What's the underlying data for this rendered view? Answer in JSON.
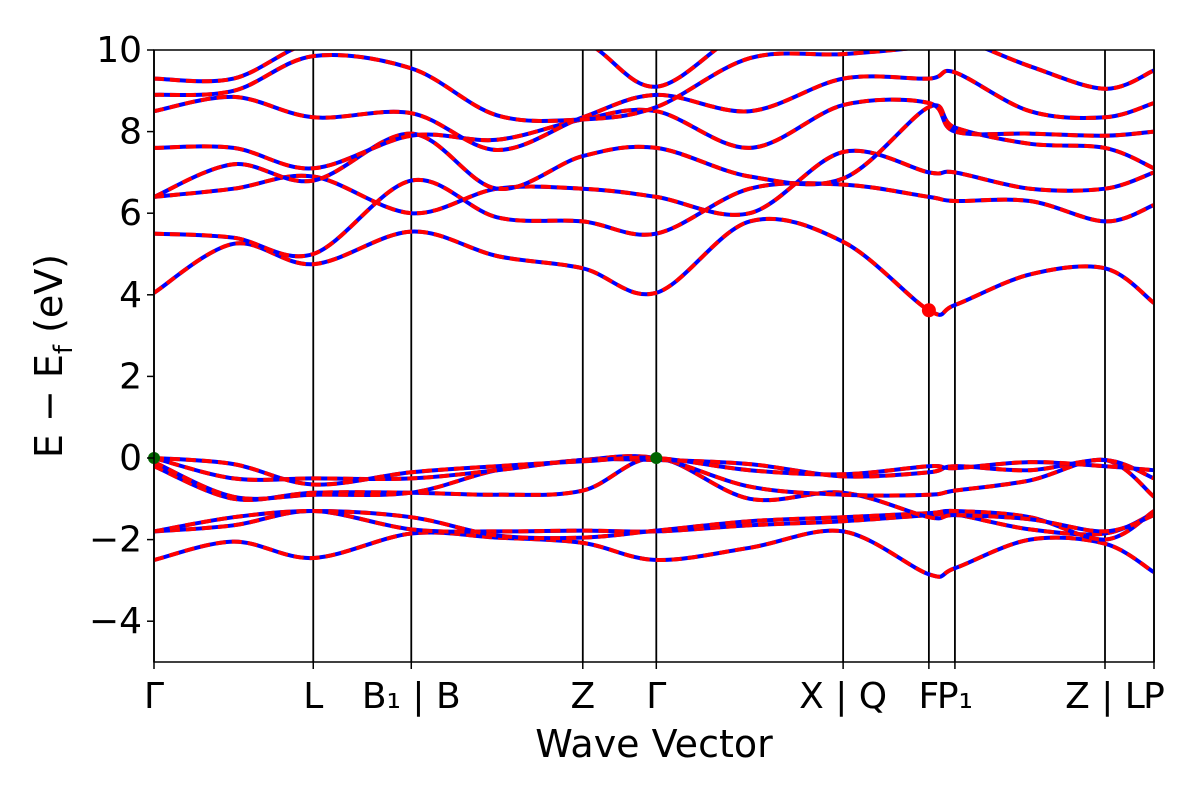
{
  "chart_data": {
    "type": "line",
    "title": "",
    "xlabel": "Wave Vector",
    "ylabel": "E − E_f (eV)",
    "ylabel_parts": {
      "main": "E − E",
      "sub": "f",
      "tail": " (eV)"
    },
    "ylim": [
      -5,
      10
    ],
    "yticks": [
      -4,
      -2,
      0,
      2,
      4,
      6,
      8,
      10
    ],
    "ytick_labels": [
      "−4",
      "−2",
      "0",
      "2",
      "4",
      "6",
      "8",
      "10"
    ],
    "xlim": [
      0,
      6.53
    ],
    "kpoints": [
      {
        "x": 0.0,
        "label": "Γ"
      },
      {
        "x": 1.04,
        "label": "L"
      },
      {
        "x": 1.68,
        "label": "B₁ | B"
      },
      {
        "x": 2.8,
        "label": "Z"
      },
      {
        "x": 3.28,
        "label": "Γ"
      },
      {
        "x": 4.5,
        "label": "X | Q"
      },
      {
        "x": 5.06,
        "label": "F"
      },
      {
        "x": 5.23,
        "label": "P₁"
      },
      {
        "x": 6.21,
        "label": "Z | L"
      },
      {
        "x": 6.53,
        "label": "P"
      }
    ],
    "band_colors": {
      "primary": "#ff0000",
      "secondary": "#0000ff"
    },
    "vbm": [
      {
        "x": 0.0,
        "y": 0.0
      },
      {
        "x": 3.28,
        "y": 0.0
      }
    ],
    "cbm": [
      {
        "x": 5.06,
        "y": 3.62
      }
    ],
    "vbm_color": "#006400",
    "cbm_color": "#ff0000",
    "bands": [
      [
        -2.5,
        -2.05,
        -2.45,
        -1.85,
        -1.95,
        -2.08,
        -2.5,
        -2.2,
        -1.8,
        -2.85,
        -2.7,
        -2.0,
        -2.1,
        -2.8
      ],
      [
        -1.8,
        -1.65,
        -1.3,
        -1.75,
        -1.8,
        -1.78,
        -1.8,
        -1.65,
        -1.55,
        -1.4,
        -1.38,
        -1.75,
        -1.85,
        -1.35
      ],
      [
        -1.8,
        -1.45,
        -1.3,
        -1.45,
        -1.9,
        -1.95,
        -1.78,
        -1.55,
        -1.45,
        -1.35,
        -1.3,
        -1.45,
        -2.0,
        -1.3
      ],
      [
        -0.2,
        -1.0,
        -0.85,
        -0.85,
        -0.9,
        -0.8,
        0.0,
        -1.0,
        -0.85,
        -1.45,
        -1.4,
        -1.5,
        -1.8,
        -1.4
      ],
      [
        -0.1,
        -0.95,
        -0.9,
        -0.85,
        -0.3,
        -0.05,
        0.0,
        -0.7,
        -0.9,
        -0.9,
        -0.8,
        -0.55,
        -0.05,
        -0.95
      ],
      [
        0.0,
        -0.5,
        -0.5,
        -0.5,
        -0.3,
        -0.05,
        -0.05,
        -0.15,
        -0.45,
        -0.35,
        -0.2,
        -0.3,
        -0.05,
        -0.5
      ],
      [
        0.0,
        -0.15,
        -0.65,
        -0.35,
        -0.2,
        -0.08,
        0.0,
        -0.3,
        -0.4,
        -0.2,
        -0.25,
        -0.1,
        -0.2,
        -0.3
      ],
      [
        4.05,
        5.25,
        4.75,
        5.55,
        4.95,
        4.65,
        4.05,
        5.8,
        5.3,
        3.62,
        3.75,
        4.5,
        4.65,
        3.8
      ],
      [
        5.5,
        5.4,
        5.0,
        6.8,
        5.9,
        5.8,
        5.5,
        6.6,
        6.7,
        6.4,
        6.3,
        6.3,
        5.8,
        6.2
      ],
      [
        6.4,
        6.6,
        6.9,
        6.0,
        6.6,
        6.6,
        6.4,
        6.0,
        7.5,
        7.0,
        7.0,
        6.6,
        6.6,
        7.0
      ],
      [
        6.4,
        7.2,
        6.8,
        7.95,
        6.6,
        7.4,
        7.6,
        6.9,
        6.85,
        8.6,
        8.1,
        7.7,
        7.6,
        7.1
      ],
      [
        7.6,
        7.6,
        7.1,
        7.9,
        7.8,
        8.3,
        8.5,
        7.6,
        8.65,
        8.7,
        8.0,
        7.95,
        7.9,
        8.0
      ],
      [
        8.5,
        8.85,
        8.35,
        8.45,
        7.55,
        8.35,
        8.9,
        8.5,
        9.3,
        9.3,
        9.45,
        8.5,
        8.35,
        8.7
      ],
      [
        8.9,
        9.0,
        9.85,
        9.55,
        8.4,
        8.3,
        8.6,
        9.8,
        9.9,
        10.1,
        10.3,
        9.6,
        9.05,
        9.5
      ],
      [
        9.3,
        9.3,
        10.2,
        10.3,
        10.3,
        10.2,
        9.1,
        10.5,
        10.4,
        10.4,
        10.6,
        10.3,
        10.3,
        10.5
      ]
    ]
  }
}
